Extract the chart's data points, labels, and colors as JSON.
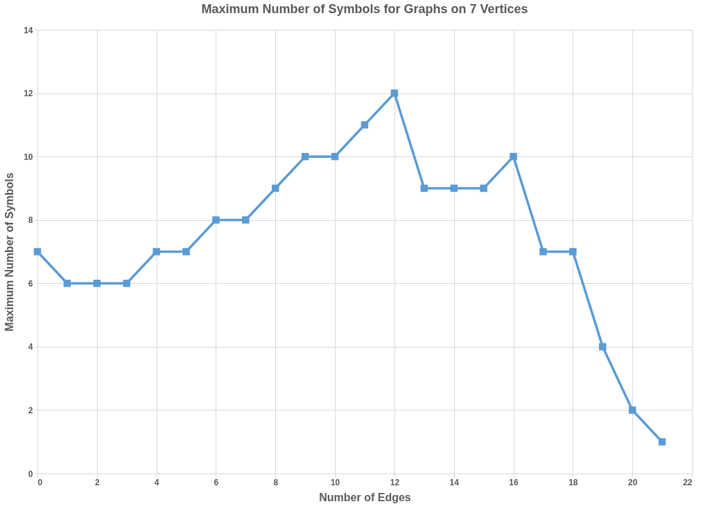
{
  "chart_data": {
    "type": "line",
    "title": "Maximum Number of Symbols for Graphs on 7 Vertices",
    "xlabel": "Number of Edges",
    "ylabel": "Maximum Number of Symbols",
    "x": [
      0,
      1,
      2,
      3,
      4,
      5,
      6,
      7,
      8,
      9,
      10,
      11,
      12,
      13,
      14,
      15,
      16,
      17,
      18,
      19,
      20,
      21
    ],
    "series": [
      {
        "color": "#5b9bd5",
        "values": [
          7,
          6,
          6,
          6,
          7,
          7,
          8,
          8,
          9,
          10,
          10,
          11,
          12,
          9,
          9,
          9,
          10,
          7,
          7,
          4,
          2,
          1
        ]
      }
    ],
    "xlim": [
      0,
      22
    ],
    "xticks": [
      0,
      2,
      4,
      6,
      8,
      10,
      12,
      14,
      16,
      18,
      20,
      22
    ],
    "ylim": [
      0,
      14
    ],
    "yticks": [
      0,
      2,
      4,
      6,
      8,
      10,
      12,
      14
    ],
    "grid": true,
    "marker": "square",
    "line_style": "solid"
  }
}
